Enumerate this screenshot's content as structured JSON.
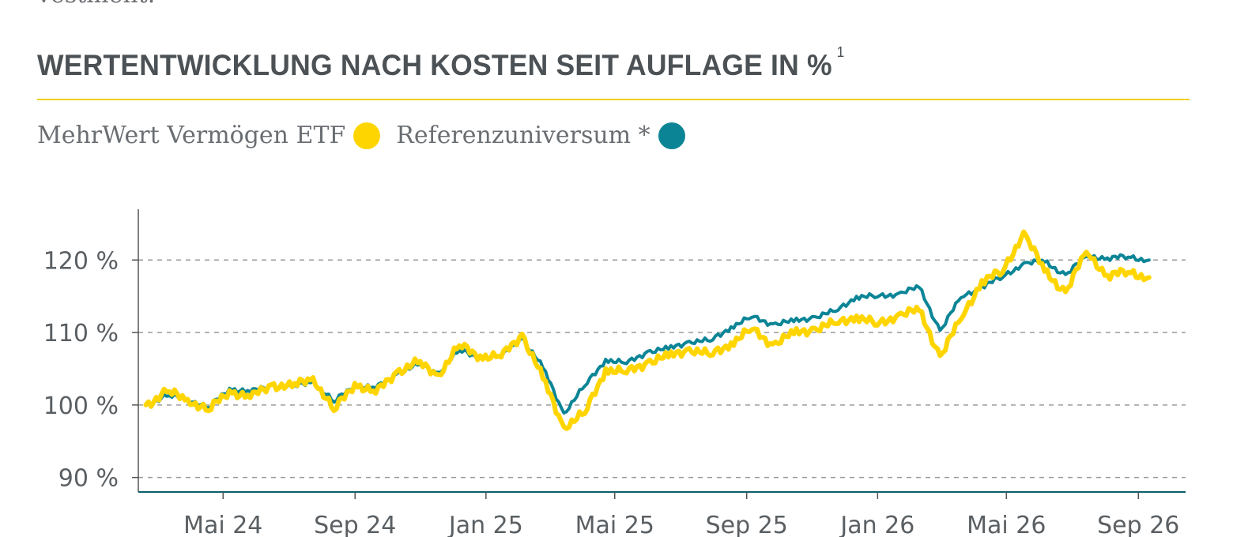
{
  "intro_fragment": "vestment.",
  "section": {
    "title": "WERTENTWICKLUNG NACH KOSTEN SEIT AUFLAGE IN %",
    "footnote_mark": "1"
  },
  "colors": {
    "etf": "#ffd500",
    "reference": "#0b8596",
    "title_rule": "#f2cf1b",
    "grid": "#9a9a9a",
    "axis": "#555555",
    "x_axis": "#0b5f6a"
  },
  "chart_data": {
    "type": "line",
    "x_start": "2024-02-19",
    "x_end": "2026-09-11",
    "xlim": [
      "2024-02-12",
      "2026-10-15"
    ],
    "ylim": [
      88,
      127
    ],
    "ytick_values": [
      90,
      100,
      110,
      120
    ],
    "ytick_labels": [
      "90 %",
      "100 %",
      "110 %",
      "120 %"
    ],
    "xtick_dates": [
      "2024-05-01",
      "2024-09-01",
      "2025-01-01",
      "2025-05-01",
      "2025-09-01",
      "2026-01-01",
      "2026-05-01",
      "2026-09-01"
    ],
    "xtick_labels": [
      "Mai 24",
      "Sep 24",
      "Jan 25",
      "Mai 25",
      "Sep 25",
      "Jan 26",
      "Mai 26",
      "Sep 26"
    ],
    "grid": "horizontal-dashed",
    "legend_position": "top-left",
    "series": [
      {
        "name": "MehrWert Vermögen ETF",
        "values": [
          100,
          101.8,
          100.8,
          99.2,
          102,
          101,
          102.8,
          102.5,
          103.8,
          99.2,
          103,
          101.6,
          104.6,
          105.8,
          104.2,
          108.2,
          106.8,
          106.6,
          109.8,
          103.6,
          97,
          98.8,
          105,
          104.4,
          106,
          106.6,
          107.8,
          106.8,
          108.6,
          110.4,
          108.4,
          109.8,
          110.6,
          111.2,
          112.3,
          111,
          112.5,
          113,
          106.8,
          111.8,
          117.2,
          118.3,
          123.9,
          118.4,
          115.6,
          121.1,
          117.9,
          118.3,
          117.6
        ]
      },
      {
        "name": "Referenzuniversum *",
        "values": [
          100,
          101.2,
          100.9,
          99.6,
          102.3,
          101.8,
          102.7,
          102.4,
          103.3,
          100.4,
          102.8,
          102.3,
          104.3,
          105.5,
          104.5,
          107.5,
          106.5,
          106.6,
          109.3,
          105.1,
          98.9,
          102.6,
          106.3,
          105.7,
          107.4,
          107.7,
          108.8,
          108.8,
          110.8,
          112.1,
          111.2,
          111.5,
          112.2,
          112.9,
          115,
          114.9,
          115.4,
          116.2,
          110.3,
          114.8,
          116.4,
          117.6,
          119.6,
          119.7,
          118,
          120.5,
          120.3,
          120.4,
          120
        ]
      }
    ]
  }
}
